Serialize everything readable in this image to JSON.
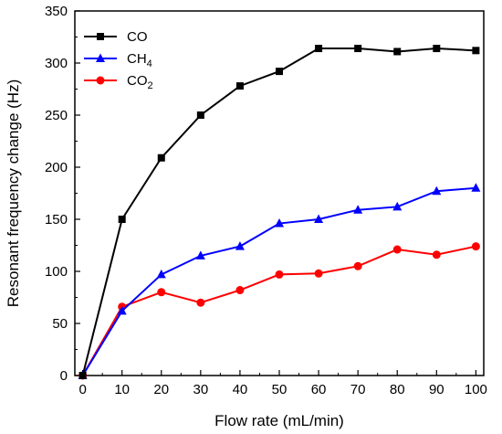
{
  "chart_data": {
    "type": "line",
    "xlabel": "Flow rate (mL/min)",
    "ylabel": "Resonant frequency change (Hz)",
    "xlim": [
      -2,
      102
    ],
    "ylim": [
      0,
      350
    ],
    "x_ticks": [
      0,
      10,
      20,
      30,
      40,
      50,
      60,
      70,
      80,
      90,
      100
    ],
    "y_ticks": [
      0,
      50,
      100,
      150,
      200,
      250,
      300,
      350
    ],
    "x_tick_labels": [
      "0",
      "10",
      "20",
      "30",
      "40",
      "50",
      "60",
      "70",
      "80",
      "90",
      "100"
    ],
    "y_tick_labels": [
      "0",
      "50",
      "100",
      "150",
      "200",
      "250",
      "300",
      "350"
    ],
    "grid": false,
    "legend_position": "top-left",
    "x": [
      0,
      10,
      20,
      30,
      40,
      50,
      60,
      70,
      80,
      90,
      100
    ],
    "series": [
      {
        "name": "CO",
        "name_main": "CO",
        "name_sub": "",
        "color": "#000000",
        "marker": "square",
        "values": [
          0,
          150,
          209,
          250,
          278,
          292,
          314,
          314,
          311,
          314,
          312
        ]
      },
      {
        "name": "CH4",
        "name_main": "CH",
        "name_sub": "4",
        "color": "#0000ff",
        "marker": "triangle",
        "values": [
          0,
          62,
          97,
          115,
          124,
          146,
          150,
          159,
          162,
          177,
          180
        ]
      },
      {
        "name": "CO2",
        "name_main": "CO",
        "name_sub": "2",
        "color": "#ff0000",
        "marker": "circle",
        "values": [
          0,
          66,
          80,
          70,
          82,
          97,
          98,
          105,
          121,
          116,
          124
        ]
      }
    ]
  }
}
